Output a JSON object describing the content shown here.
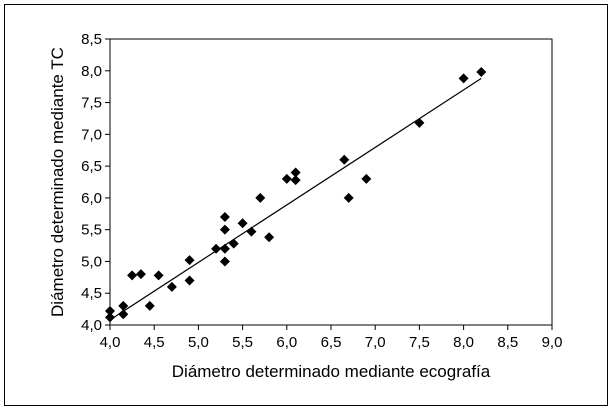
{
  "chart_data": {
    "type": "scatter",
    "title": "",
    "xlabel": "Diámetro determinado mediante ecografía",
    "ylabel": "Diámetro determinado mediante TC",
    "xlim": [
      4.0,
      9.0
    ],
    "ylim": [
      4.0,
      8.5
    ],
    "xticks": [
      "4,0",
      "4,5",
      "5,0",
      "5,5",
      "6,0",
      "6,5",
      "7,0",
      "7,5",
      "8,0",
      "8,5",
      "9,0"
    ],
    "yticks": [
      "4,0",
      "4,5",
      "5,0",
      "5,5",
      "6,0",
      "6,5",
      "7,0",
      "7,5",
      "8,0",
      "8,5"
    ],
    "grid": false,
    "legend": "none",
    "marker": "diamond",
    "marker_color": "#000000",
    "points": [
      {
        "x": 4.0,
        "y": 4.12
      },
      {
        "x": 4.0,
        "y": 4.22
      },
      {
        "x": 4.15,
        "y": 4.17
      },
      {
        "x": 4.15,
        "y": 4.3
      },
      {
        "x": 4.25,
        "y": 4.78
      },
      {
        "x": 4.35,
        "y": 4.8
      },
      {
        "x": 4.45,
        "y": 4.3
      },
      {
        "x": 4.55,
        "y": 4.78
      },
      {
        "x": 4.7,
        "y": 4.6
      },
      {
        "x": 4.9,
        "y": 5.02
      },
      {
        "x": 4.9,
        "y": 4.7
      },
      {
        "x": 5.2,
        "y": 5.2
      },
      {
        "x": 5.3,
        "y": 5.7
      },
      {
        "x": 5.3,
        "y": 5.5
      },
      {
        "x": 5.3,
        "y": 5.2
      },
      {
        "x": 5.3,
        "y": 5.0
      },
      {
        "x": 5.4,
        "y": 5.28
      },
      {
        "x": 5.5,
        "y": 5.6
      },
      {
        "x": 5.6,
        "y": 5.47
      },
      {
        "x": 5.7,
        "y": 6.0
      },
      {
        "x": 5.8,
        "y": 5.38
      },
      {
        "x": 6.0,
        "y": 6.3
      },
      {
        "x": 6.1,
        "y": 6.4
      },
      {
        "x": 6.1,
        "y": 6.28
      },
      {
        "x": 6.65,
        "y": 6.6
      },
      {
        "x": 6.7,
        "y": 6.0
      },
      {
        "x": 6.9,
        "y": 6.3
      },
      {
        "x": 7.5,
        "y": 7.18
      },
      {
        "x": 8.0,
        "y": 7.88
      },
      {
        "x": 8.2,
        "y": 7.98
      }
    ],
    "trendline": {
      "x": [
        4.0,
        8.2
      ],
      "y": [
        4.08,
        7.88
      ]
    }
  }
}
